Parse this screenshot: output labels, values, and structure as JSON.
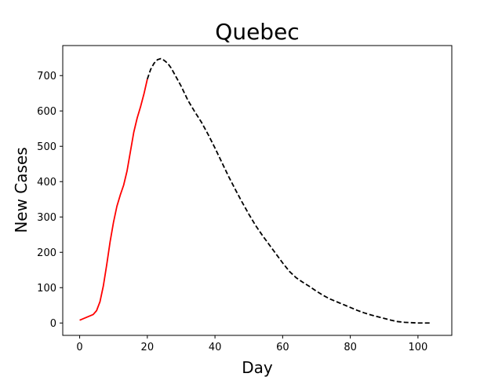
{
  "chart_data": {
    "type": "line",
    "title": "Quebec",
    "xlabel": "Day",
    "ylabel": "New Cases",
    "xlim": [
      -5,
      110
    ],
    "ylim": [
      -35,
      785
    ],
    "xticks": [
      0,
      20,
      40,
      60,
      80,
      100
    ],
    "yticks": [
      0,
      100,
      200,
      300,
      400,
      500,
      600,
      700
    ],
    "grid": false,
    "series": [
      {
        "color": "#ff0000",
        "style": "solid",
        "x": [
          0,
          2,
          4,
          5,
          6,
          7,
          8,
          9,
          10,
          11,
          12,
          13,
          14,
          15,
          16,
          17,
          18,
          19,
          20
        ],
        "y": [
          8,
          16,
          24,
          35,
          60,
          105,
          165,
          230,
          285,
          330,
          362,
          390,
          430,
          485,
          540,
          580,
          612,
          648,
          690
        ]
      },
      {
        "color": "#000000",
        "style": "dashed",
        "x": [
          20,
          21,
          22,
          23,
          24,
          25,
          26,
          27,
          28,
          30,
          32,
          34,
          36,
          38,
          40,
          42,
          44,
          46,
          48,
          50,
          52,
          54,
          56,
          58,
          60,
          62,
          64,
          66,
          68,
          70,
          72,
          74,
          76,
          78,
          80,
          82,
          84,
          86,
          88,
          90,
          92,
          94,
          96,
          98,
          100,
          102,
          104
        ],
        "y": [
          690,
          718,
          735,
          745,
          748,
          743,
          735,
          722,
          705,
          670,
          630,
          598,
          568,
          533,
          495,
          455,
          415,
          378,
          342,
          308,
          276,
          248,
          222,
          196,
          170,
          146,
          128,
          115,
          103,
          90,
          78,
          68,
          60,
          52,
          44,
          36,
          29,
          23,
          18,
          13,
          8,
          4,
          2,
          1,
          0,
          0,
          0
        ]
      }
    ]
  }
}
